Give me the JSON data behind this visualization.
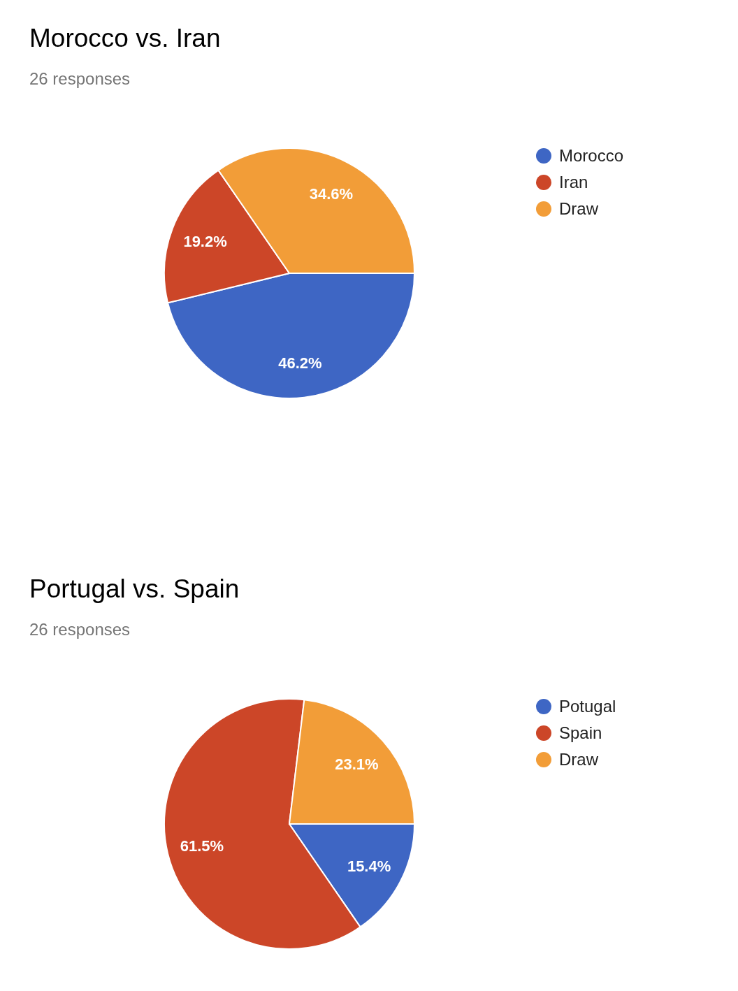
{
  "chart_data": [
    {
      "type": "pie",
      "title": "Morocco vs. Iran",
      "subtitle": "26 responses",
      "categories": [
        "Morocco",
        "Iran",
        "Draw"
      ],
      "values": [
        46.2,
        19.2,
        34.6
      ],
      "value_labels": [
        "46.2%",
        "19.2%",
        "34.6%"
      ],
      "colors": [
        "#3e66c4",
        "#cc4628",
        "#f29d38"
      ],
      "legend": "right"
    },
    {
      "type": "pie",
      "title": "Portugal vs. Spain",
      "subtitle": "26 responses",
      "categories": [
        "Potugal",
        "Spain",
        "Draw"
      ],
      "values": [
        15.4,
        61.5,
        23.1
      ],
      "value_labels": [
        "15.4%",
        "61.5%",
        "23.1%"
      ],
      "colors": [
        "#3e66c4",
        "#cc4628",
        "#f29d38"
      ],
      "legend": "right"
    }
  ]
}
